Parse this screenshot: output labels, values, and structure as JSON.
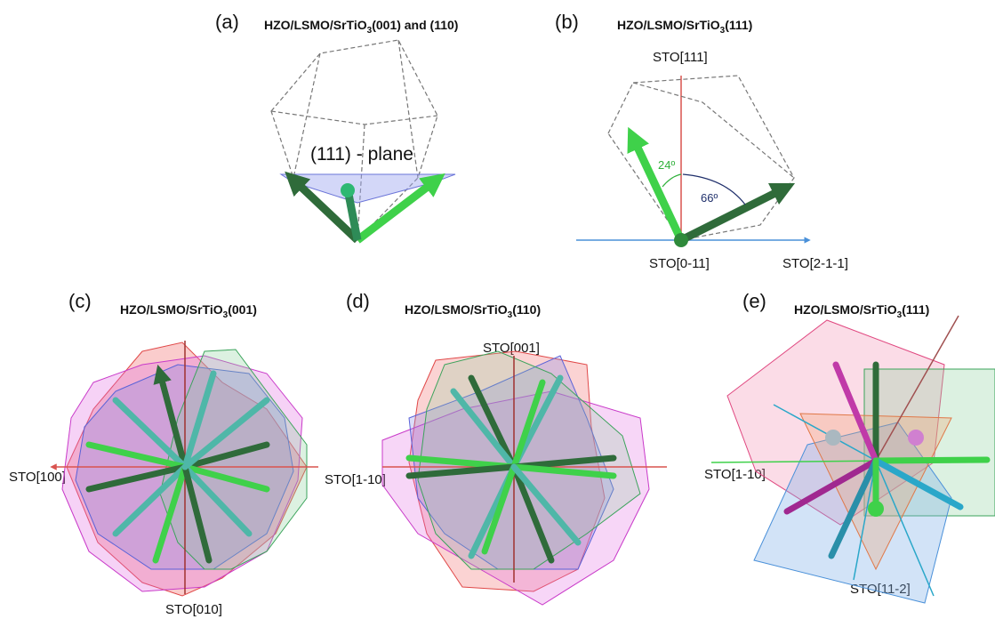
{
  "panels": {
    "a": {
      "letter": "(a)",
      "title_prefix": "HZO/LSMO/SrTiO",
      "title_sub": "3",
      "title_suffix": "(001) and (110)",
      "plane_label": "(111) - plane"
    },
    "b": {
      "letter": "(b)",
      "title_prefix": "HZO/LSMO/SrTiO",
      "title_sub": "3",
      "title_suffix": "(111)",
      "axis_top": "STO[111]",
      "axis_origin": "STO[0-11]",
      "axis_right": "STO[2-1-1]",
      "angle_small": "24º",
      "angle_large": "66º"
    },
    "c": {
      "letter": "(c)",
      "title_prefix": "HZO/LSMO/SrTiO",
      "title_sub": "3",
      "title_suffix": "(001)",
      "axis_left": "STO[100]",
      "axis_bottom": "STO[010]"
    },
    "d": {
      "letter": "(d)",
      "title_prefix": "HZO/LSMO/SrTiO",
      "title_sub": "3",
      "title_suffix": "(110)",
      "axis_top": "STO[001]",
      "axis_left": "STO[1-10]"
    },
    "e": {
      "letter": "(e)",
      "title_prefix": "HZO/LSMO/SrTiO",
      "title_sub": "3",
      "title_suffix": "(111)",
      "axis_left": "STO[1-10]",
      "axis_bottom": "STO[11-2]"
    }
  },
  "colors": {
    "green_dark": "#2f6b3a",
    "green_light": "#3fd14a",
    "teal": "#4fb7a8",
    "red_axis": "#d9534f",
    "blue_axis": "#4a90d9",
    "navy": "#1f2f6b",
    "magenta": "#c03aa8",
    "cyan": "#2aa7c9"
  }
}
